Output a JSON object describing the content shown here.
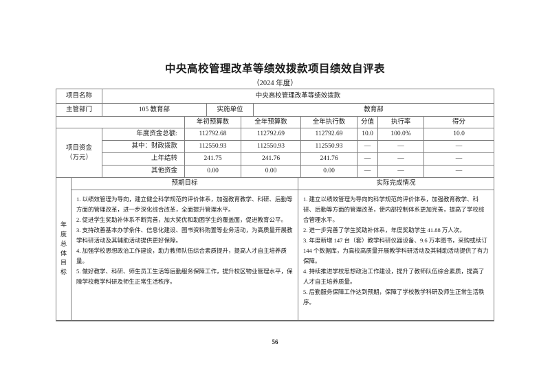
{
  "page": {
    "title": "中央高校管理改革等绩效拨款项目绩效自评表",
    "subtitle": "（2024 年度）",
    "page_number": "56"
  },
  "info": {
    "project_name_label": "项目名称",
    "project_name_value": "中央高校管理改革等绩效拨款",
    "dept_label": "主管部门",
    "dept_value": "105 教育部",
    "impl_label": "实施单位",
    "impl_value": "教育部"
  },
  "funding": {
    "section_label_line1": "项目资金",
    "section_label_line2": "（万元）",
    "headers": {
      "initial": "年初预算数",
      "annual": "全年预算数",
      "executed": "全年执行数",
      "weight": "分值",
      "rate": "执行率",
      "score": "得分"
    },
    "rows": [
      {
        "label": "年度资金总额:",
        "initial": "112792.68",
        "annual": "112792.69",
        "executed": "112792.69",
        "weight": "10.0",
        "rate": "100.0%",
        "score": "10.0"
      },
      {
        "label": "其中：财政拨款",
        "initial": "112550.93",
        "annual": "112550.93",
        "executed": "112550.93",
        "weight": "—",
        "rate": "—",
        "score": "—"
      },
      {
        "label": "上年结转",
        "initial": "241.75",
        "annual": "241.76",
        "executed": "241.76",
        "weight": "—",
        "rate": "—",
        "score": "—"
      },
      {
        "label": "其他资金",
        "initial": "0.00",
        "annual": "0.00",
        "executed": "0.00",
        "weight": "—",
        "rate": "—",
        "score": "—"
      }
    ]
  },
  "goals": {
    "section_label_chars": [
      "年",
      "度",
      "总",
      "体",
      "目",
      "标"
    ],
    "expected_header": "预期目标",
    "actual_header": "实际完成情况",
    "expected_items": [
      "1. 以绩效管理为导向，建立健全科学规范的评价体系，加强教育教学、科研、后勤等方面的管理改革，进一步深化综合改革，全面提升管理水平。",
      "2. 促进学生奖助补体系不断完善，加大奖优和助困学生的覆盖面，促进教育公平。",
      "3. 支持改善基本办学条件、信息化建设、图书资料购置等业务活动，为高质量开展教学科研活动及其辅助活动提供更好保障。",
      "4. 加强学校思想政治工作建设，助力教师队伍综合素质提升，提高人才自主培养质量。",
      "5. 做好教学、科研、师生员工生活等后勤服务保障工作，提升校区物业管理水平，保障学校教学科研及师生正常生活秩序。"
    ],
    "actual_items": [
      "1. 建立以绩效管理为导向的科学规范的评价体系，加强教育教学、科研、后勤等方面的管理改革，使内部控制体系更加完善，提高了学校综合管理水平。",
      "2. 进一步完善了学生奖助补体系，年度奖助学生 41.88 万人次。",
      "3. 年度新增 147 台（套）教学科研仪器设备、9.6 万本图书，采购或续订 144 个数据库，为高校高质量开展教学科研活动及其辅助活动提供了有力保障。",
      "4. 持续推进学校思想政治工作建设，提升了教师队伍综合素质，提高了人才自主培养质量。",
      "5. 后勤服务保障工作达到预期，保障了学校教学科研及师生正常生活秩序。"
    ]
  }
}
